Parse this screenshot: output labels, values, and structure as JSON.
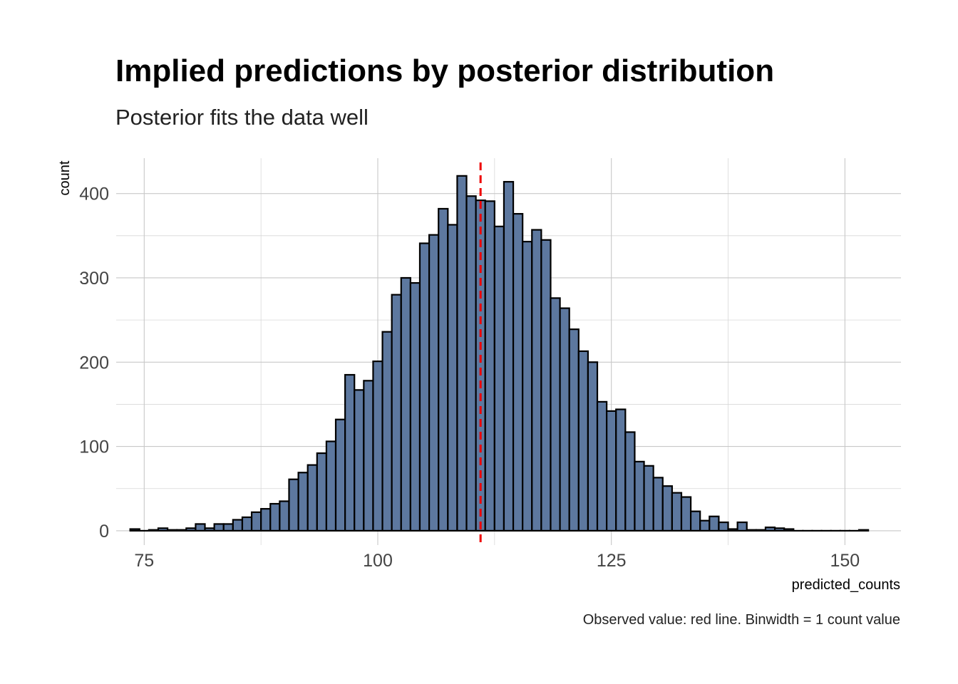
{
  "chart_data": {
    "type": "bar",
    "title": "Implied predictions by posterior distribution",
    "subtitle": "Posterior fits the data well",
    "xlabel": "predicted_counts",
    "ylabel": "count",
    "caption": "Observed value: red line. Binwidth = 1 count value",
    "xlim": [
      72,
      156
    ],
    "ylim": [
      -17,
      442
    ],
    "x_ticks": [
      75,
      100,
      125,
      150
    ],
    "y_ticks": [
      0,
      100,
      200,
      300,
      400
    ],
    "binwidth": 1,
    "observed_value": 111,
    "grid": true,
    "legend": "none",
    "bar_color": "#5d789f",
    "observed_line_color": "#ee0000",
    "bins": [
      74,
      75,
      76,
      77,
      78,
      79,
      80,
      81,
      82,
      83,
      84,
      85,
      86,
      87,
      88,
      89,
      90,
      91,
      92,
      93,
      94,
      95,
      96,
      97,
      98,
      99,
      100,
      101,
      102,
      103,
      104,
      105,
      106,
      107,
      108,
      109,
      110,
      111,
      112,
      113,
      114,
      115,
      116,
      117,
      118,
      119,
      120,
      121,
      122,
      123,
      124,
      125,
      126,
      127,
      128,
      129,
      130,
      131,
      132,
      133,
      134,
      135,
      136,
      137,
      138,
      139,
      140,
      141,
      142,
      143,
      144,
      145,
      146,
      147,
      148,
      149,
      150,
      151,
      152
    ],
    "counts": [
      2,
      0,
      1,
      3,
      1,
      1,
      3,
      8,
      3,
      8,
      8,
      13,
      16,
      22,
      26,
      32,
      35,
      61,
      69,
      78,
      92,
      106,
      132,
      185,
      167,
      178,
      201,
      236,
      280,
      300,
      294,
      341,
      351,
      382,
      363,
      421,
      397,
      392,
      391,
      361,
      414,
      376,
      343,
      357,
      345,
      276,
      264,
      239,
      213,
      200,
      153,
      142,
      144,
      117,
      82,
      77,
      63,
      53,
      45,
      40,
      23,
      12,
      17,
      10,
      2,
      10,
      1,
      1,
      4,
      3,
      2,
      0,
      0,
      0,
      0,
      0,
      0,
      0,
      1
    ]
  }
}
